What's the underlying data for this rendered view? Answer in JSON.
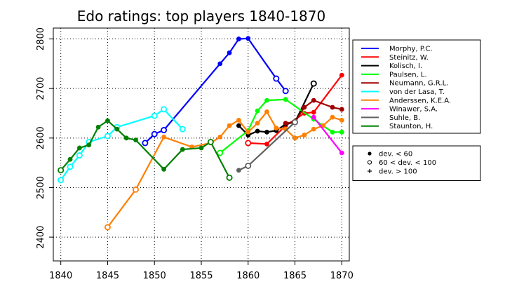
{
  "chart_data": {
    "type": "line",
    "title": "Edo ratings: top players 1840-1870",
    "xlabel": "",
    "ylabel": "",
    "xlim": [
      1839.2,
      1870.8
    ],
    "ylim": [
      2352,
      2822
    ],
    "x_ticks": [
      1840,
      1845,
      1850,
      1855,
      1860,
      1865,
      1870
    ],
    "y_ticks": [
      2400,
      2500,
      2600,
      2700,
      2800
    ],
    "grid": "dotted",
    "legend_position": "right",
    "uncertainty_legend": [
      {
        "marker": "filled-dot",
        "label": "dev. < 60"
      },
      {
        "marker": "open-circle",
        "label": "60 < dev. < 100"
      },
      {
        "marker": "plus",
        "label": "dev. > 100"
      }
    ],
    "series": [
      {
        "name": "Morphy, P.C.",
        "color": "#0000ff",
        "points": [
          [
            1849,
            2590,
            "o"
          ],
          [
            1850,
            2608,
            "o"
          ],
          [
            1851,
            2616,
            "o"
          ],
          [
            1857,
            2750,
            "f"
          ],
          [
            1858,
            2772,
            "f"
          ],
          [
            1859,
            2800,
            "f"
          ],
          [
            1860,
            2801,
            "f"
          ],
          [
            1863,
            2720,
            "o"
          ],
          [
            1864,
            2695,
            "o"
          ]
        ]
      },
      {
        "name": "Steinitz, W.",
        "color": "#ff0000",
        "points": [
          [
            1860,
            2590,
            "o"
          ],
          [
            1862,
            2588,
            "f"
          ],
          [
            1864,
            2625,
            "f"
          ],
          [
            1866,
            2650,
            "f"
          ],
          [
            1867,
            2652,
            "f"
          ],
          [
            1870,
            2727,
            "f"
          ]
        ]
      },
      {
        "name": "Kolisch, I.",
        "color": "#000000",
        "points": [
          [
            1859,
            2625,
            "f"
          ],
          [
            1860,
            2606,
            "f"
          ],
          [
            1861,
            2614,
            "f"
          ],
          [
            1862,
            2612,
            "f"
          ],
          [
            1863,
            2615,
            "f"
          ],
          [
            1864,
            2628,
            "f"
          ],
          [
            1865,
            2632,
            "f"
          ],
          [
            1867,
            2710,
            "o"
          ]
        ]
      },
      {
        "name": "Paulsen, L.",
        "color": "#00ff00",
        "points": [
          [
            1857,
            2570,
            "o"
          ],
          [
            1860,
            2615,
            "f"
          ],
          [
            1861,
            2655,
            "f"
          ],
          [
            1862,
            2676,
            "f"
          ],
          [
            1864,
            2678,
            "f"
          ],
          [
            1867,
            2638,
            "f"
          ],
          [
            1869,
            2612,
            "f"
          ],
          [
            1870,
            2612,
            "f"
          ]
        ]
      },
      {
        "name": "Neumann, G.R.L.",
        "color": "#a00000",
        "points": [
          [
            1864,
            2630,
            "f"
          ],
          [
            1865,
            2632,
            "f"
          ],
          [
            1866,
            2662,
            "f"
          ],
          [
            1867,
            2676,
            "f"
          ],
          [
            1869,
            2662,
            "f"
          ],
          [
            1870,
            2658,
            "f"
          ]
        ]
      },
      {
        "name": "von der Lasa, T.",
        "color": "#00ffff",
        "points": [
          [
            1840,
            2515,
            "o"
          ],
          [
            1841,
            2542,
            "o"
          ],
          [
            1842,
            2565,
            "o"
          ],
          [
            1843,
            2592,
            "o"
          ],
          [
            1845,
            2604,
            "o"
          ],
          [
            1846,
            2622,
            "o"
          ],
          [
            1850,
            2645,
            "o"
          ],
          [
            1851,
            2658,
            "o"
          ],
          [
            1853,
            2618,
            "o"
          ]
        ]
      },
      {
        "name": "Anderssen, K.E.A.",
        "color": "#ff7f00",
        "points": [
          [
            1845,
            2420,
            "o"
          ],
          [
            1848,
            2496,
            "o"
          ],
          [
            1851,
            2602,
            "f"
          ],
          [
            1854,
            2582,
            "f"
          ],
          [
            1856,
            2590,
            "f"
          ],
          [
            1857,
            2602,
            "f"
          ],
          [
            1858,
            2625,
            "f"
          ],
          [
            1859,
            2636,
            "f"
          ],
          [
            1860,
            2612,
            "f"
          ],
          [
            1861,
            2630,
            "f"
          ],
          [
            1862,
            2653,
            "f"
          ],
          [
            1863,
            2620,
            "f"
          ],
          [
            1864,
            2618,
            "f"
          ],
          [
            1865,
            2600,
            "f"
          ],
          [
            1866,
            2606,
            "f"
          ],
          [
            1867,
            2618,
            "f"
          ],
          [
            1868,
            2625,
            "f"
          ],
          [
            1869,
            2642,
            "f"
          ],
          [
            1870,
            2636,
            "f"
          ]
        ]
      },
      {
        "name": "Winawer, S.A.",
        "color": "#ff00ff",
        "points": [
          [
            1867,
            2642,
            "f"
          ],
          [
            1870,
            2570,
            "f"
          ]
        ]
      },
      {
        "name": "Suhle, B.",
        "color": "#606060",
        "points": [
          [
            1859,
            2535,
            "f"
          ],
          [
            1860,
            2544,
            "o"
          ],
          [
            1865,
            2632,
            "o"
          ]
        ]
      },
      {
        "name": "Staunton, H.",
        "color": "#008000",
        "points": [
          [
            1840,
            2535,
            "o"
          ],
          [
            1841,
            2557,
            "f"
          ],
          [
            1842,
            2580,
            "f"
          ],
          [
            1843,
            2586,
            "f"
          ],
          [
            1844,
            2622,
            "f"
          ],
          [
            1845,
            2635,
            "f"
          ],
          [
            1846,
            2618,
            "f"
          ],
          [
            1847,
            2600,
            "f"
          ],
          [
            1848,
            2596,
            "f"
          ],
          [
            1851,
            2537,
            "f"
          ],
          [
            1853,
            2577,
            "f"
          ],
          [
            1855,
            2580,
            "f"
          ],
          [
            1856,
            2592,
            "o"
          ],
          [
            1858,
            2520,
            "o"
          ]
        ]
      }
    ]
  }
}
